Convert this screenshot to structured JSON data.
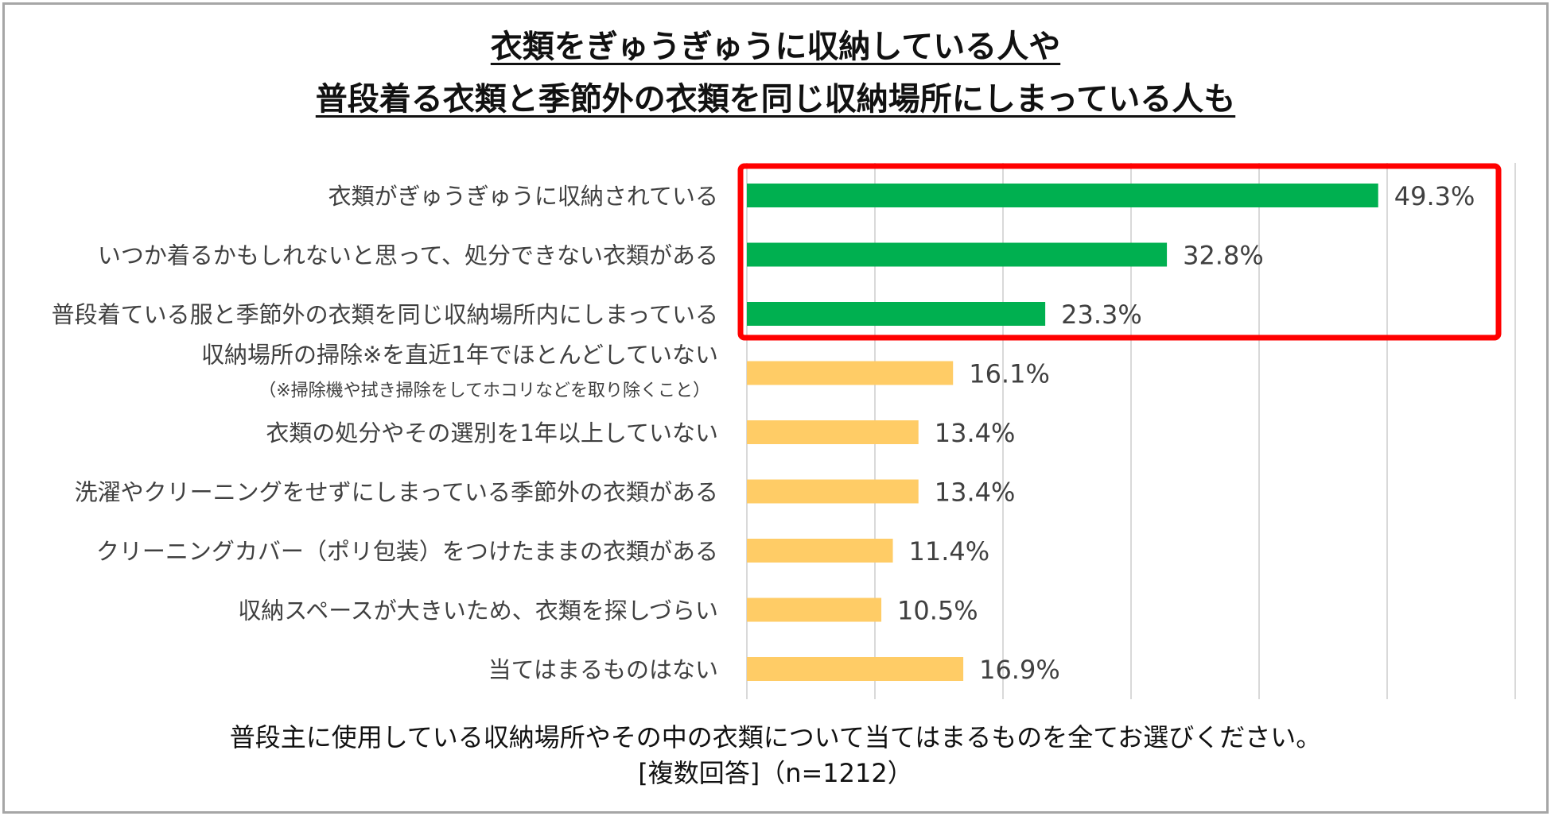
{
  "title": {
    "line1": "衣類をぎゅうぎゅうに収納している人や",
    "line2": "普段着る衣類と季節外の衣類を同じ収納場所にしまっている人も"
  },
  "footer": {
    "question": "普段主に使用している収納場所やその中の衣類について当てはまるものを全てお選びください。",
    "answer_type": "[複数回答]（n=1212）"
  },
  "colors": {
    "highlight_bar": "#00b050",
    "normal_bar": "#ffcc66",
    "highlight_box": "#ff0000",
    "gridline": "#d9d9d9",
    "text": "#404040"
  },
  "chart_data": {
    "type": "bar",
    "orientation": "horizontal",
    "title": "衣類をぎゅうぎゅうに収納している人や普段着る衣類と季節外の衣類を同じ収納場所にしまっている人も",
    "xlim": [
      0,
      60
    ],
    "grid": true,
    "value_suffix": "%",
    "categories": [
      "衣類がぎゅうぎゅうに収納されている",
      "いつか着るかもしれないと思って、処分できない衣類がある",
      "普段着ている服と季節外の衣類を同じ収納場所内にしまっている",
      "収納場所の掃除※を直近1年でほとんどしていない",
      "衣類の処分やその選別を1年以上していない",
      "洗濯やクリーニングをせずにしまっている季節外の衣類がある",
      "クリーニングカバー（ポリ包装）をつけたままの衣類がある",
      "収納スペースが大きいため、衣類を探しづらい",
      "当てはまるものはない"
    ],
    "category_notes": [
      "",
      "",
      "",
      "（※掃除機や拭き掃除をしてホコリなどを取り除くこと）",
      "",
      "",
      "",
      "",
      ""
    ],
    "values": [
      49.3,
      32.8,
      23.3,
      16.1,
      13.4,
      13.4,
      11.4,
      10.5,
      16.9
    ],
    "value_labels": [
      "49.3%",
      "32.8%",
      "23.3%",
      "16.1%",
      "13.4%",
      "13.4%",
      "11.4%",
      "10.5%",
      "16.9%"
    ],
    "highlighted": [
      true,
      true,
      true,
      false,
      false,
      false,
      false,
      false,
      false
    ]
  }
}
